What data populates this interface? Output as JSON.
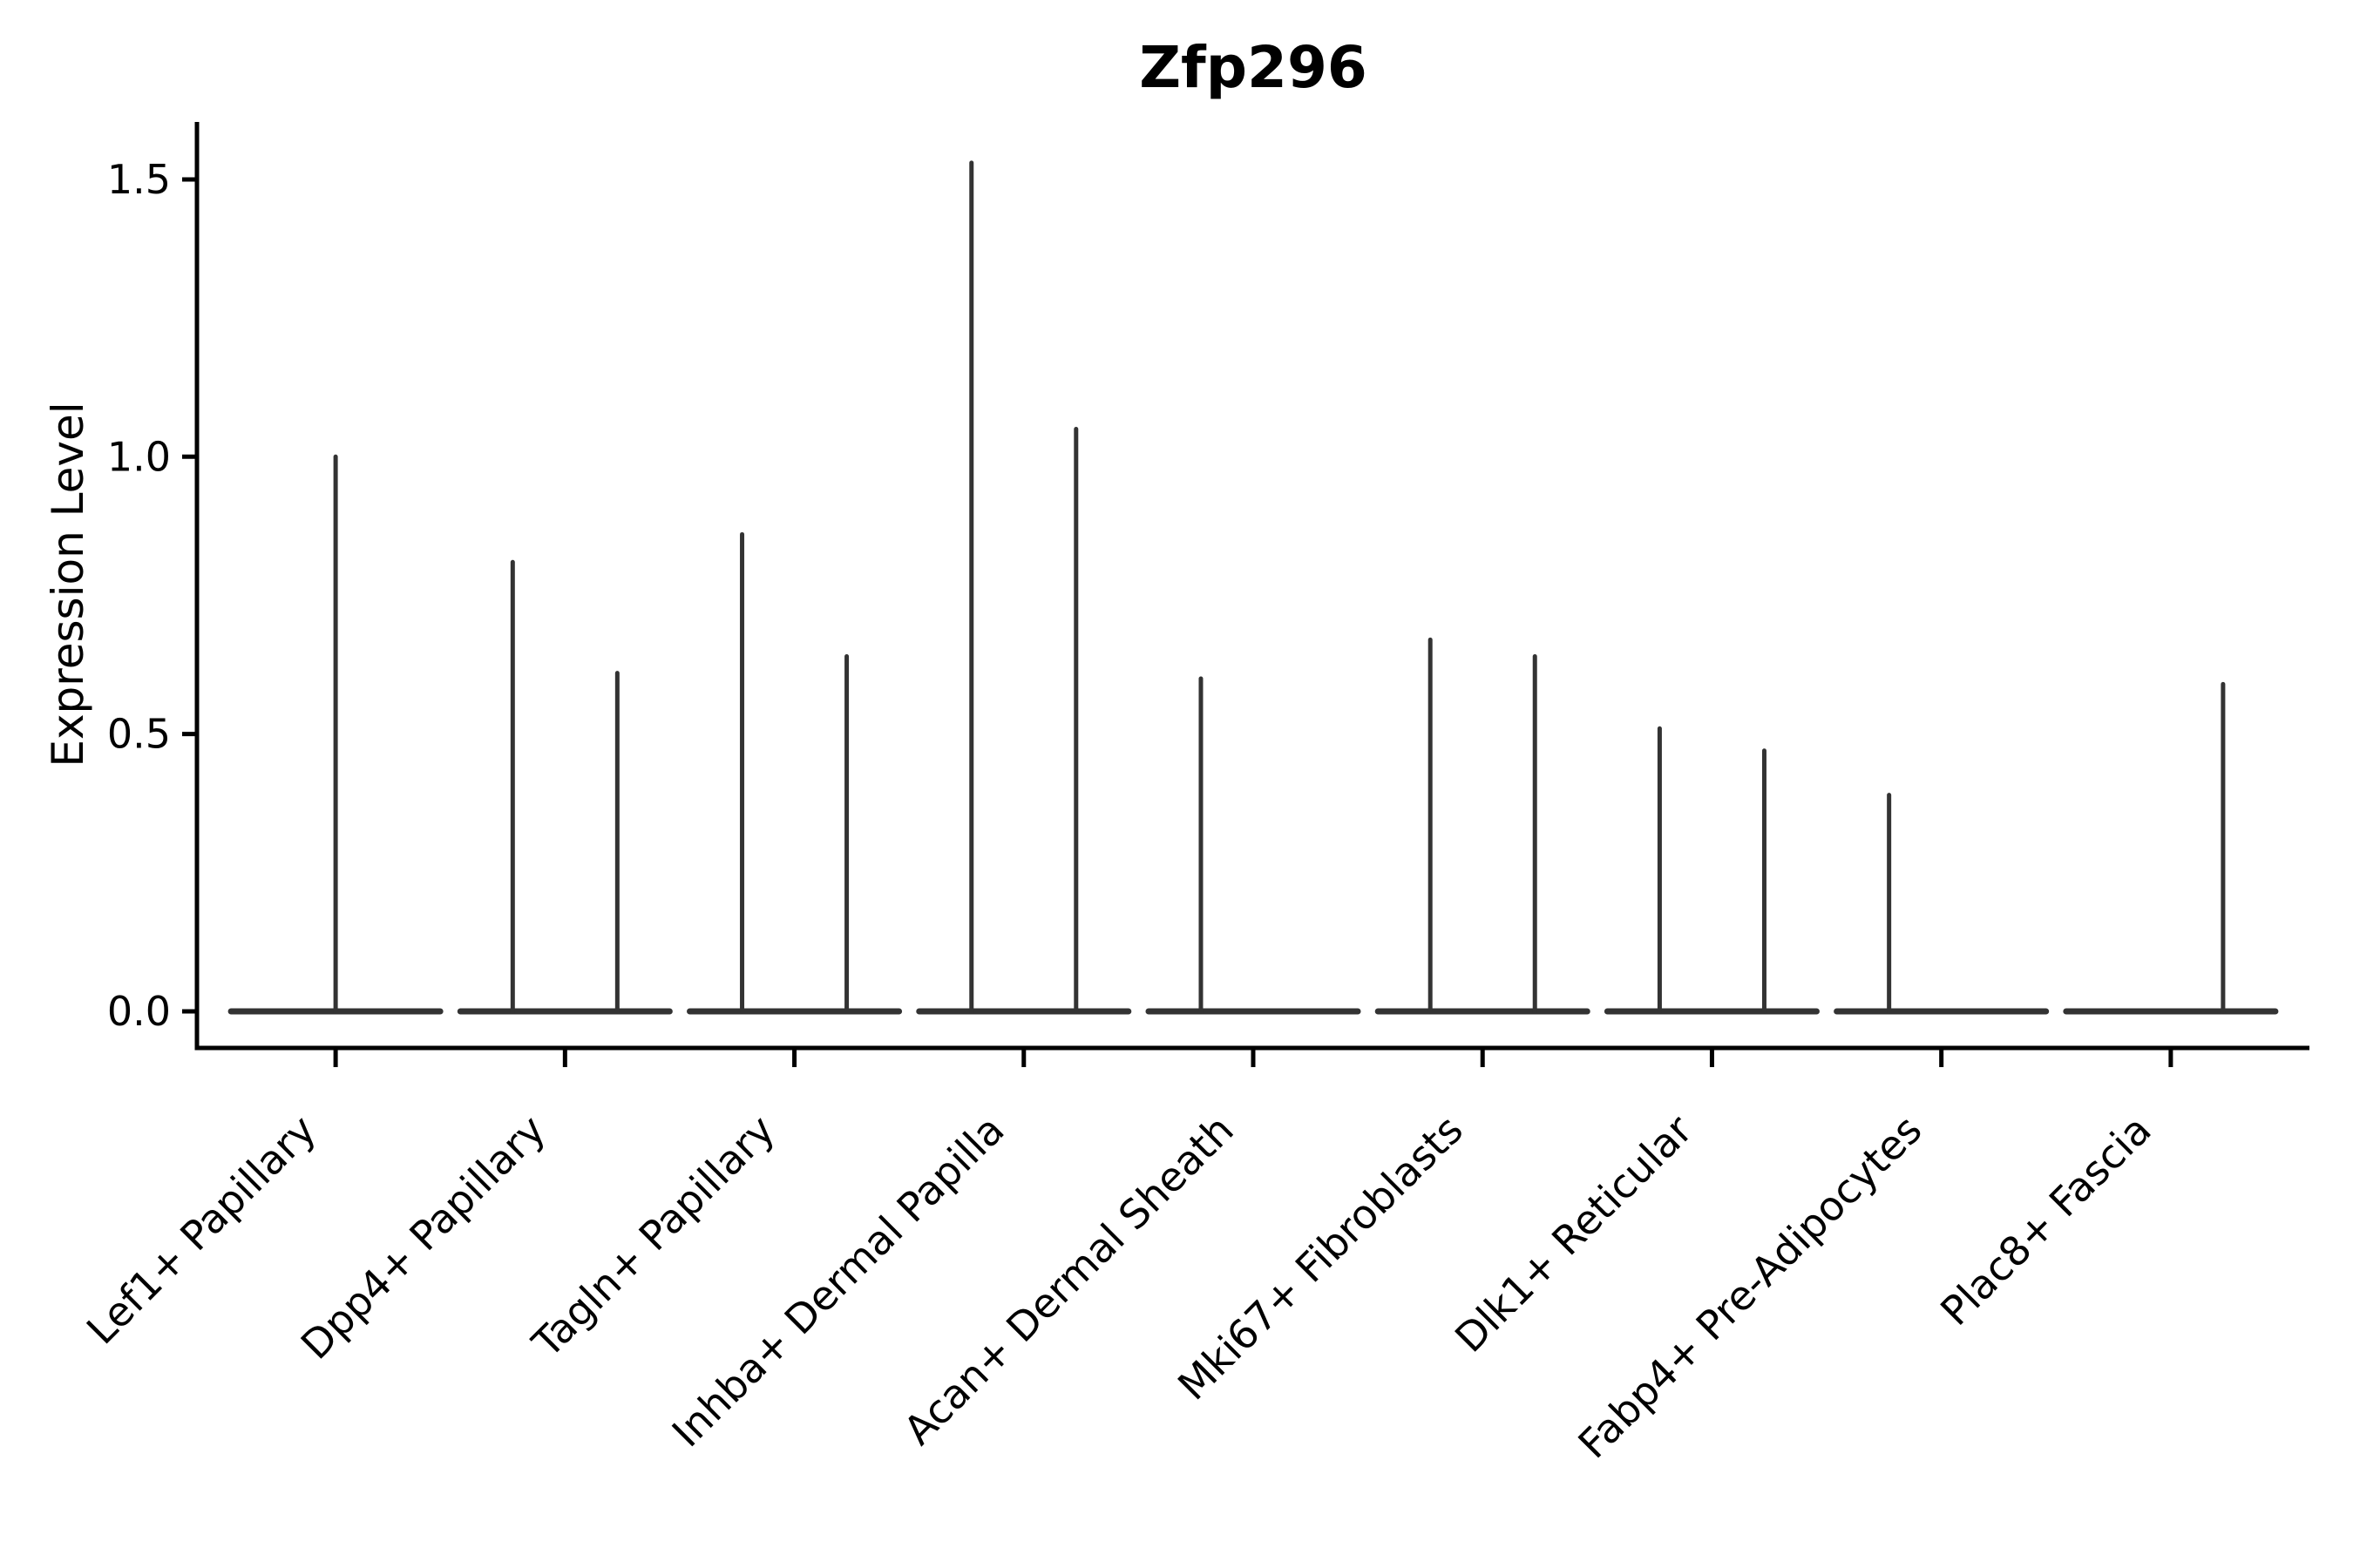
{
  "chart_data": {
    "type": "violin",
    "title": "Zfp296",
    "xlabel": "",
    "ylabel": "Expression Level",
    "ylim": [
      -0.07,
      1.6
    ],
    "y_ticks": [
      0.0,
      0.5,
      1.0,
      1.5
    ],
    "y_tick_labels": [
      "0.0",
      "0.5",
      "1.0",
      "1.5"
    ],
    "x_tick_label_rotation": 45,
    "grid": false,
    "legend": "none",
    "categories": [
      "Lef1+ Papillary",
      "Dpp4+ Papillary",
      "Tagln+ Papillary",
      "Inhba+ Dermal Papilla",
      "Acan+ Dermal Sheath",
      "Mki67+ Fibroblasts",
      "Dlk1+ Reticular",
      "Fabp4+ Pre-Adipocytes",
      "Plac8+ Fascia"
    ],
    "violins": [
      {
        "category": "Lef1+ Papillary",
        "base_halfwidth_frac": 0.456,
        "needles": [
          {
            "offset_frac": 0.0,
            "value": 1.0
          }
        ]
      },
      {
        "category": "Dpp4+ Papillary",
        "base_halfwidth_frac": 0.456,
        "needles": [
          {
            "offset_frac": -0.228,
            "value": 0.81
          },
          {
            "offset_frac": 0.228,
            "value": 0.61
          }
        ]
      },
      {
        "category": "Tagln+ Papillary",
        "base_halfwidth_frac": 0.456,
        "needles": [
          {
            "offset_frac": -0.228,
            "value": 0.86
          },
          {
            "offset_frac": 0.228,
            "value": 0.64
          }
        ]
      },
      {
        "category": "Inhba+ Dermal Papilla",
        "base_halfwidth_frac": 0.456,
        "needles": [
          {
            "offset_frac": -0.228,
            "value": 1.53
          },
          {
            "offset_frac": 0.228,
            "value": 1.05
          }
        ]
      },
      {
        "category": "Acan+ Dermal Sheath",
        "base_halfwidth_frac": 0.456,
        "needles": [
          {
            "offset_frac": -0.228,
            "value": 0.6
          }
        ]
      },
      {
        "category": "Mki67+ Fibroblasts",
        "base_halfwidth_frac": 0.456,
        "needles": [
          {
            "offset_frac": -0.228,
            "value": 0.67
          },
          {
            "offset_frac": 0.228,
            "value": 0.64
          }
        ]
      },
      {
        "category": "Dlk1+ Reticular",
        "base_halfwidth_frac": 0.456,
        "needles": [
          {
            "offset_frac": -0.228,
            "value": 0.51
          },
          {
            "offset_frac": 0.228,
            "value": 0.47
          }
        ]
      },
      {
        "category": "Fabp4+ Pre-Adipocytes",
        "base_halfwidth_frac": 0.456,
        "needles": [
          {
            "offset_frac": -0.228,
            "value": 0.39
          }
        ]
      },
      {
        "category": "Plac8+ Fascia",
        "base_halfwidth_frac": 0.456,
        "needles": [
          {
            "offset_frac": 0.228,
            "value": 0.59
          }
        ]
      }
    ],
    "colors": {
      "violin": "#333333",
      "axis": "#000000",
      "text": "#000000",
      "background": "#ffffff"
    }
  }
}
